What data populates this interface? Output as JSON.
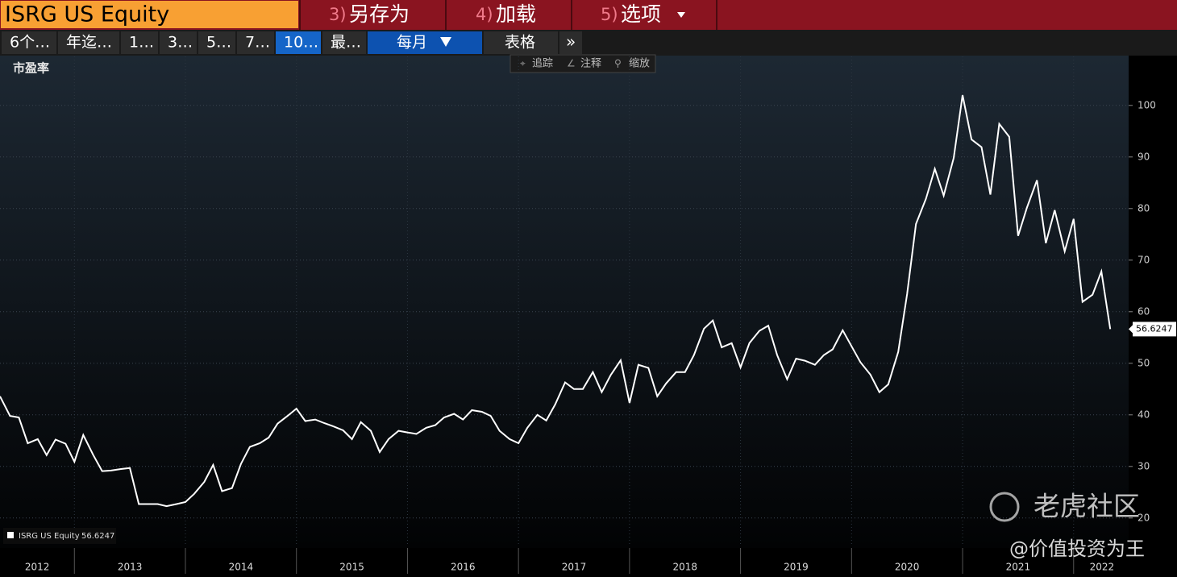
{
  "header": {
    "ticker": "ISRG US Equity",
    "menu": [
      {
        "num": "3)",
        "label": "另存为"
      },
      {
        "num": "4)",
        "label": "加载"
      },
      {
        "num": "5)",
        "label": "选项"
      }
    ]
  },
  "toolbar": {
    "ranges": [
      "6个…",
      "年迄…",
      "1…",
      "3…",
      "5…",
      "7…",
      "10…",
      "最…"
    ],
    "frequency": "每月",
    "table": "表格",
    "more": "»"
  },
  "chart_tools": [
    "追踪",
    "注释",
    "缩放"
  ],
  "watermark": {
    "brand": "老虎社区",
    "author": "@价值投资为王"
  },
  "chart_data": {
    "type": "line",
    "y_label": "市盈率",
    "x": [
      2012.33,
      2012.42,
      2012.5,
      2012.58,
      2012.67,
      2012.75,
      2012.83,
      2012.92,
      2013,
      2013.08,
      2013.17,
      2013.25,
      2013.33,
      2013.42,
      2013.5,
      2013.58,
      2013.67,
      2013.75,
      2013.83,
      2013.92,
      2014,
      2014.08,
      2014.17,
      2014.25,
      2014.33,
      2014.42,
      2014.5,
      2014.58,
      2014.67,
      2014.75,
      2014.83,
      2014.92,
      2015,
      2015.08,
      2015.17,
      2015.25,
      2015.33,
      2015.42,
      2015.5,
      2015.58,
      2015.67,
      2015.75,
      2015.83,
      2015.92,
      2016,
      2016.08,
      2016.17,
      2016.25,
      2016.33,
      2016.42,
      2016.5,
      2016.58,
      2016.67,
      2016.75,
      2016.83,
      2016.92,
      2017,
      2017.08,
      2017.17,
      2017.25,
      2017.33,
      2017.42,
      2017.5,
      2017.58,
      2017.67,
      2017.75,
      2017.83,
      2017.92,
      2018,
      2018.08,
      2018.17,
      2018.25,
      2018.33,
      2018.42,
      2018.5,
      2018.58,
      2018.67,
      2018.75,
      2018.83,
      2018.92,
      2019,
      2019.08,
      2019.17,
      2019.25,
      2019.33,
      2019.42,
      2019.5,
      2019.58,
      2019.67,
      2019.75,
      2019.83,
      2019.92,
      2020,
      2020.08,
      2020.17,
      2020.25,
      2020.33,
      2020.42,
      2020.5,
      2020.58,
      2020.67,
      2020.75,
      2020.83,
      2020.92,
      2021,
      2021.08,
      2021.17,
      2021.25,
      2021.33,
      2021.42,
      2021.5,
      2021.58,
      2021.67,
      2021.75,
      2021.83,
      2021.92,
      2022,
      2022.08,
      2022.17,
      2022.25,
      2022.33
    ],
    "series": [
      {
        "name": "ISRG US Equity",
        "color": "#ffffff",
        "values": [
          43.6,
          39.8,
          39.5,
          34.5,
          35.3,
          32.2,
          35.2,
          34.4,
          30.9,
          36.1,
          32.2,
          29.1,
          29.2,
          29.5,
          29.7,
          22.7,
          22.7,
          22.7,
          22.3,
          22.7,
          23.1,
          24.7,
          27.0,
          30.3,
          25.2,
          25.8,
          30.5,
          33.8,
          34.5,
          35.6,
          38.3,
          39.8,
          41.2,
          38.8,
          39.1,
          38.4,
          37.8,
          37.0,
          35.3,
          38.6,
          36.9,
          32.8,
          35.3,
          36.9,
          36.6,
          36.3,
          37.5,
          38.0,
          39.5,
          40.2,
          39.1,
          40.9,
          40.6,
          39.8,
          36.9,
          35.3,
          34.5,
          37.5,
          40.0,
          38.9,
          42.0,
          46.3,
          45.0,
          45.0,
          48.3,
          44.4,
          47.7,
          50.6,
          42.3,
          49.7,
          49.1,
          43.6,
          46.1,
          48.3,
          48.3,
          51.6,
          56.7,
          58.3,
          53.1,
          53.9,
          49.2,
          53.9,
          56.3,
          57.3,
          51.6,
          46.9,
          50.9,
          50.5,
          49.7,
          51.6,
          52.7,
          56.4,
          53.3,
          50.2,
          47.8,
          44.4,
          45.9,
          52.2,
          63.4,
          77.0,
          81.9,
          87.7,
          82.5,
          89.8,
          102.0,
          93.4,
          91.9,
          82.7,
          96.4,
          93.9,
          74.7,
          80.2,
          85.5,
          73.3,
          79.7,
          71.7,
          78.0,
          61.9,
          63.3,
          67.8,
          56.6247
        ]
      }
    ],
    "xlim": [
      2012.33,
      2022.51
    ],
    "xticks": [
      2012,
      2013,
      2014,
      2015,
      2016,
      2017,
      2018,
      2019,
      2020,
      2021,
      2022
    ],
    "ylim": [
      14.5,
      109.5
    ],
    "yticks": [
      20,
      30,
      40,
      50,
      60,
      70,
      80,
      90,
      100
    ],
    "grid": true,
    "legend": "lower left"
  }
}
